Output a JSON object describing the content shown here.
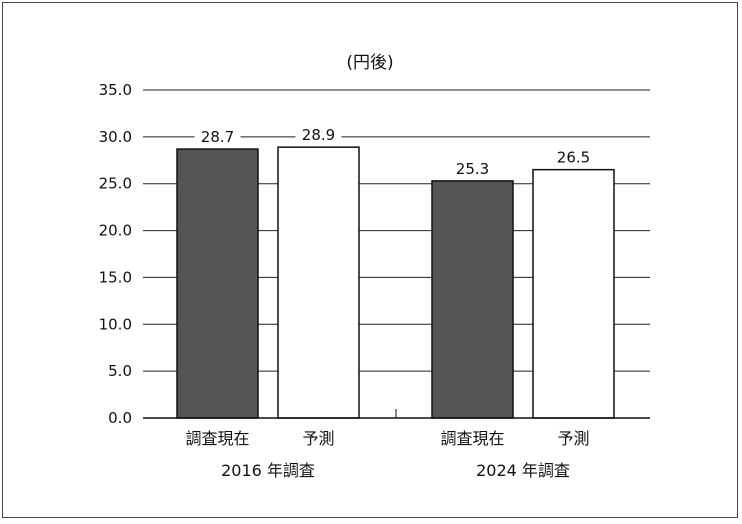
{
  "chart_data": {
    "type": "bar",
    "title": "(円後)",
    "ylim": [
      0,
      35
    ],
    "yticks": [
      "0.0",
      "5.0",
      "10.0",
      "15.0",
      "20.0",
      "25.0",
      "30.0",
      "35.0"
    ],
    "grid": true,
    "groups": [
      {
        "label": "2016 年調査",
        "bars": [
          {
            "label": "調査現在",
            "value": 28.7,
            "value_label": "28.7",
            "fill": "#555555"
          },
          {
            "label": "予測",
            "value": 28.9,
            "value_label": "28.9",
            "fill": "#ffffff"
          }
        ]
      },
      {
        "label": "2024 年調査",
        "bars": [
          {
            "label": "調査現在",
            "value": 25.3,
            "value_label": "25.3",
            "fill": "#555555"
          },
          {
            "label": "予測",
            "value": 26.5,
            "value_label": "26.5",
            "fill": "#ffffff"
          }
        ]
      }
    ]
  },
  "colors": {
    "dark_bar": "#555555",
    "light_bar": "#ffffff",
    "outline": "#111111",
    "gridline": "#222222"
  }
}
